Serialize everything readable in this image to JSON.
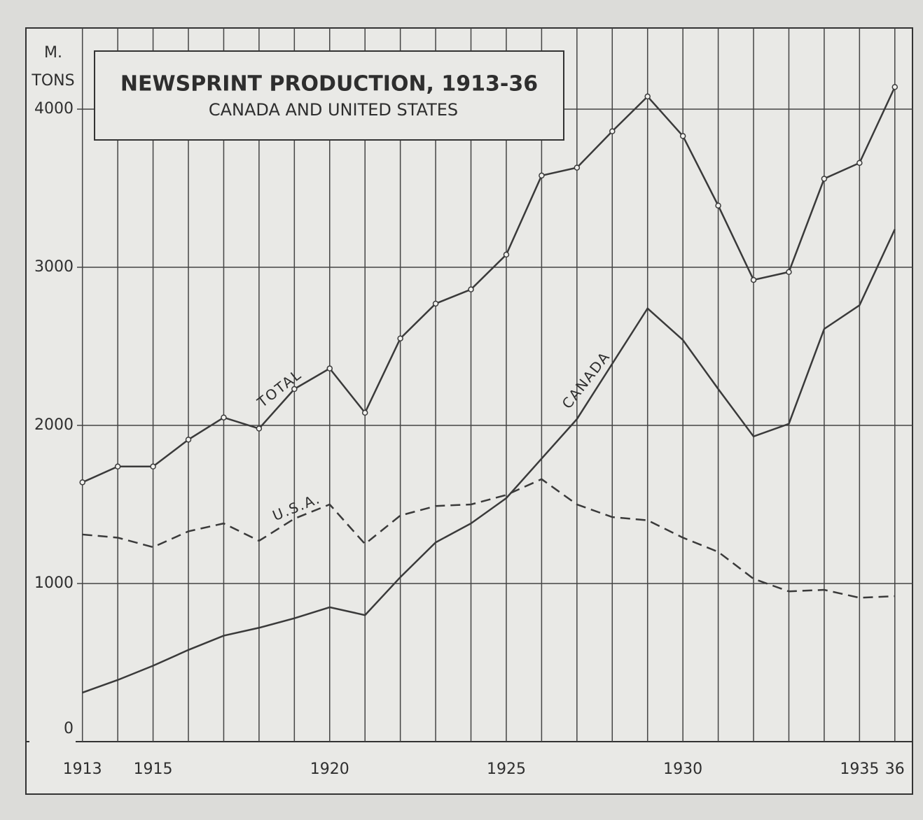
{
  "chart_data": {
    "type": "line",
    "title": "NEWSPRINT PRODUCTION, 1913-36",
    "subtitle": "CANADA AND UNITED STATES",
    "ylabel": [
      "M.",
      "TONS"
    ],
    "x": [
      1913,
      1914,
      1915,
      1916,
      1917,
      1918,
      1919,
      1920,
      1921,
      1922,
      1923,
      1924,
      1925,
      1926,
      1927,
      1928,
      1929,
      1930,
      1931,
      1932,
      1933,
      1934,
      1935,
      1936
    ],
    "series": [
      {
        "name": "TOTAL",
        "color": "#3a3a3a",
        "linestyle": "solid",
        "markers": true,
        "values": [
          1640,
          1740,
          1740,
          1910,
          2050,
          1980,
          2230,
          2360,
          2080,
          2550,
          2770,
          2860,
          3080,
          3580,
          3630,
          3860,
          4080,
          3830,
          3390,
          2920,
          2970,
          3560,
          3660,
          4140
        ]
      },
      {
        "name": "CANADA",
        "color": "#3a3a3a",
        "linestyle": "solid",
        "markers": false,
        "values": [
          310,
          390,
          480,
          580,
          670,
          720,
          780,
          850,
          800,
          1040,
          1260,
          1380,
          1540,
          1790,
          2040,
          2390,
          2740,
          2540,
          2230,
          1930,
          2010,
          2610,
          2760,
          3240
        ]
      },
      {
        "name": "U.S.A.",
        "color": "#3a3a3a",
        "linestyle": "dashed",
        "markers": false,
        "values": [
          1310,
          1290,
          1230,
          1330,
          1380,
          1270,
          1410,
          1500,
          1250,
          1430,
          1490,
          1500,
          1560,
          1660,
          1500,
          1420,
          1400,
          1290,
          1200,
          1030,
          950,
          960,
          910,
          920
        ]
      }
    ],
    "xlim": [
      1911.4,
      1936.5
    ],
    "xticks": [
      1913,
      1915,
      1920,
      1925,
      1930,
      1935,
      {
        "value": 1936,
        "label": "36"
      }
    ],
    "ylim": [
      0,
      4500
    ],
    "yticks": [
      0,
      1000,
      2000,
      3000,
      4000
    ],
    "grid": true
  }
}
